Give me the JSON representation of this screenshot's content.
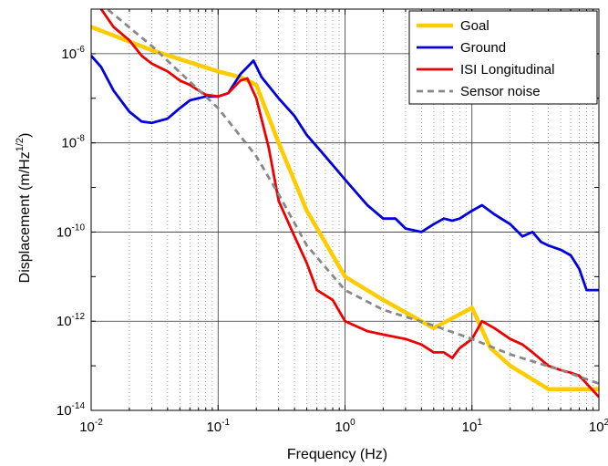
{
  "chart_data": {
    "type": "line",
    "xscale": "log",
    "yscale": "log",
    "xlim": [
      0.01,
      100
    ],
    "ylim": [
      1e-14,
      1e-05
    ],
    "xlabel": "Frequency (Hz)",
    "ylabel": "Displacement (m/Hz",
    "ylabel_sup": "1/2",
    "ylabel_end": ")",
    "grid": true,
    "legend_position": "top-right",
    "x_ticks": [
      {
        "base": "10",
        "exp": "-2",
        "value": 0.01
      },
      {
        "base": "10",
        "exp": "-1",
        "value": 0.1
      },
      {
        "base": "10",
        "exp": "0",
        "value": 1
      },
      {
        "base": "10",
        "exp": "1",
        "value": 10
      },
      {
        "base": "10",
        "exp": "2",
        "value": 100
      }
    ],
    "y_ticks": [
      {
        "base": "10",
        "exp": "-14",
        "value": 1e-14
      },
      {
        "base": "10",
        "exp": "-12",
        "value": 1e-12
      },
      {
        "base": "10",
        "exp": "-10",
        "value": 1e-10
      },
      {
        "base": "10",
        "exp": "-8",
        "value": 1e-08
      },
      {
        "base": "10",
        "exp": "-6",
        "value": 1e-06
      }
    ],
    "series": [
      {
        "name": "Goal",
        "color": "#FFCC00",
        "dash": "solid",
        "points": [
          [
            0.01,
            4e-06
          ],
          [
            0.03,
            1.2e-06
          ],
          [
            0.1,
            4e-07
          ],
          [
            0.15,
            3e-07
          ],
          [
            0.2,
            2e-07
          ],
          [
            0.3,
            1e-08
          ],
          [
            0.5,
            3e-10
          ],
          [
            1,
            1e-11
          ],
          [
            2,
            3e-12
          ],
          [
            5,
            7e-13
          ],
          [
            10,
            2e-12
          ],
          [
            14,
            2.5e-13
          ],
          [
            20,
            1e-13
          ],
          [
            40,
            3e-14
          ],
          [
            100,
            3e-14
          ]
        ]
      },
      {
        "name": "Ground",
        "color": "#0000DD",
        "dash": "solid",
        "points": [
          [
            0.01,
            9e-07
          ],
          [
            0.012,
            5e-07
          ],
          [
            0.015,
            1.5e-07
          ],
          [
            0.02,
            5e-08
          ],
          [
            0.025,
            3e-08
          ],
          [
            0.03,
            2.8e-08
          ],
          [
            0.04,
            3.5e-08
          ],
          [
            0.05,
            6e-08
          ],
          [
            0.06,
            9e-08
          ],
          [
            0.08,
            1.1e-07
          ],
          [
            0.1,
            1.1e-07
          ],
          [
            0.12,
            1.3e-07
          ],
          [
            0.15,
            3.5e-07
          ],
          [
            0.17,
            5e-07
          ],
          [
            0.19,
            7e-07
          ],
          [
            0.22,
            3e-07
          ],
          [
            0.3,
            1e-07
          ],
          [
            0.4,
            4e-08
          ],
          [
            0.5,
            1.5e-08
          ],
          [
            0.7,
            5e-09
          ],
          [
            1,
            1.5e-09
          ],
          [
            1.5,
            4e-10
          ],
          [
            2,
            2e-10
          ],
          [
            2.5,
            2e-10
          ],
          [
            3,
            1.2e-10
          ],
          [
            4,
            1e-10
          ],
          [
            5,
            1.5e-10
          ],
          [
            6,
            2e-10
          ],
          [
            7,
            1.8e-10
          ],
          [
            8,
            2e-10
          ],
          [
            10,
            3e-10
          ],
          [
            12,
            4e-10
          ],
          [
            15,
            2.5e-10
          ],
          [
            20,
            1.5e-10
          ],
          [
            25,
            8e-11
          ],
          [
            30,
            1e-10
          ],
          [
            35,
            6e-11
          ],
          [
            40,
            5e-11
          ],
          [
            50,
            4e-11
          ],
          [
            60,
            3e-11
          ],
          [
            70,
            1.5e-11
          ],
          [
            80,
            5e-12
          ],
          [
            100,
            5e-12
          ]
        ]
      },
      {
        "name": "ISI Longitudinal",
        "color": "#EE0000",
        "dash": "solid",
        "points": [
          [
            0.01,
            2e-05
          ],
          [
            0.012,
            1e-05
          ],
          [
            0.015,
            4e-06
          ],
          [
            0.02,
            2e-06
          ],
          [
            0.025,
            9e-07
          ],
          [
            0.03,
            6e-07
          ],
          [
            0.04,
            4e-07
          ],
          [
            0.05,
            2.5e-07
          ],
          [
            0.06,
            2e-07
          ],
          [
            0.07,
            1.5e-07
          ],
          [
            0.08,
            1.2e-07
          ],
          [
            0.1,
            1.1e-07
          ],
          [
            0.12,
            1.3e-07
          ],
          [
            0.15,
            2.5e-07
          ],
          [
            0.17,
            2.8e-07
          ],
          [
            0.2,
            1e-07
          ],
          [
            0.25,
            8e-09
          ],
          [
            0.3,
            5e-10
          ],
          [
            0.4,
            8e-11
          ],
          [
            0.5,
            2e-11
          ],
          [
            0.6,
            5e-12
          ],
          [
            0.8,
            3e-12
          ],
          [
            1,
            1e-12
          ],
          [
            1.5,
            6e-13
          ],
          [
            2,
            5e-13
          ],
          [
            3,
            4e-13
          ],
          [
            4,
            3e-13
          ],
          [
            5,
            2e-13
          ],
          [
            6,
            2e-13
          ],
          [
            7,
            1.5e-13
          ],
          [
            8,
            2.5e-13
          ],
          [
            10,
            4e-13
          ],
          [
            12,
            1e-12
          ],
          [
            15,
            7e-13
          ],
          [
            20,
            4e-13
          ],
          [
            25,
            3e-13
          ],
          [
            30,
            2e-13
          ],
          [
            40,
            1e-13
          ],
          [
            50,
            8e-14
          ],
          [
            60,
            7e-14
          ],
          [
            70,
            6e-14
          ],
          [
            80,
            4e-14
          ],
          [
            100,
            2e-14
          ]
        ]
      },
      {
        "name": "Sensor noise",
        "color": "#888888",
        "dash": "dashed",
        "points": [
          [
            0.01,
            2e-05
          ],
          [
            0.03,
            1.5e-06
          ],
          [
            0.1,
            6e-08
          ],
          [
            0.2,
            5e-09
          ],
          [
            0.3,
            7e-10
          ],
          [
            0.5,
            5e-11
          ],
          [
            1,
            5e-12
          ],
          [
            2,
            1.8e-12
          ],
          [
            5,
            8e-13
          ],
          [
            10,
            4e-13
          ],
          [
            20,
            1.8e-13
          ],
          [
            50,
            8e-14
          ],
          [
            100,
            4e-14
          ]
        ]
      }
    ]
  }
}
